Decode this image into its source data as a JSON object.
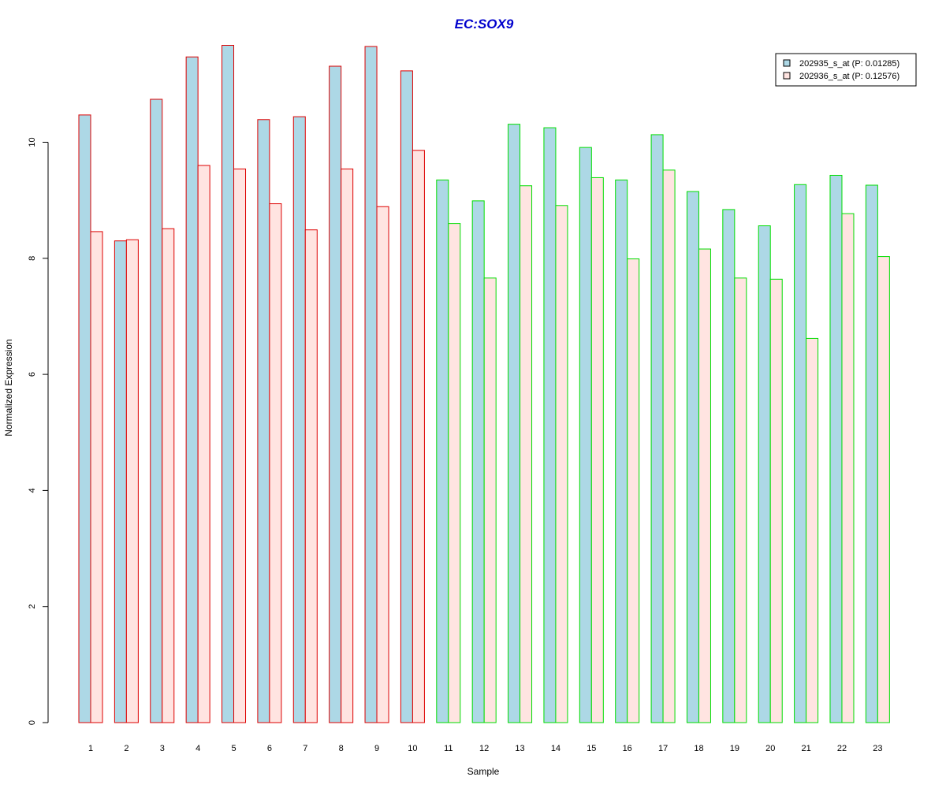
{
  "chart_data": {
    "type": "bar",
    "title": "EC:SOX9",
    "xlabel": "Sample",
    "ylabel": "Normalized Expression",
    "ylim": [
      0,
      12
    ],
    "yticks": [
      0,
      2,
      4,
      6,
      8,
      10
    ],
    "grid": false,
    "legend_position": "top-right",
    "title_color": "#0000CD",
    "categories": [
      "1",
      "2",
      "3",
      "4",
      "5",
      "6",
      "7",
      "8",
      "9",
      "10",
      "11",
      "12",
      "13",
      "14",
      "15",
      "16",
      "17",
      "18",
      "19",
      "20",
      "21",
      "22",
      "23"
    ],
    "group_border_colors": [
      "#DD0000",
      "#DD0000",
      "#DD0000",
      "#DD0000",
      "#DD0000",
      "#DD0000",
      "#DD0000",
      "#DD0000",
      "#DD0000",
      "#DD0000",
      "#00DD00",
      "#00DD00",
      "#00DD00",
      "#00DD00",
      "#00DD00",
      "#00DD00",
      "#00DD00",
      "#00DD00",
      "#00DD00",
      "#00DD00",
      "#00DD00",
      "#00DD00",
      "#00DD00"
    ],
    "series": [
      {
        "name": "202935_s_at (P: 0.01285)",
        "fill": "#ADD8E6",
        "values": [
          10.47,
          8.3,
          10.74,
          11.47,
          11.67,
          10.39,
          10.44,
          11.31,
          11.65,
          11.23,
          9.35,
          8.99,
          10.31,
          10.25,
          9.91,
          9.35,
          10.13,
          9.15,
          8.84,
          8.56,
          9.27,
          9.43,
          9.26
        ]
      },
      {
        "name": "202936_s_at (P: 0.12576)",
        "fill": "#FFE4E1",
        "values": [
          8.46,
          8.32,
          8.51,
          9.6,
          9.54,
          8.94,
          8.49,
          9.54,
          8.89,
          9.86,
          8.6,
          7.66,
          9.25,
          8.91,
          9.39,
          7.99,
          9.52,
          8.16,
          7.66,
          7.64,
          6.62,
          8.77,
          8.03
        ]
      }
    ]
  }
}
